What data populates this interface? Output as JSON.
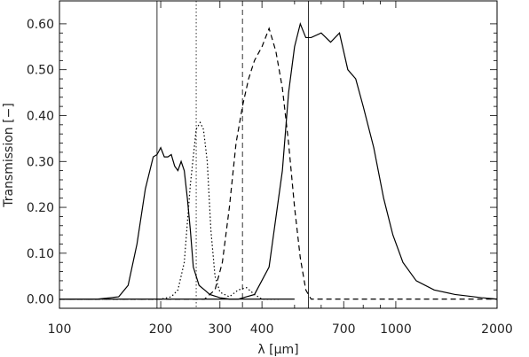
{
  "chart_data": {
    "type": "line",
    "xlabel": "λ [μm]",
    "ylabel": "Transmission [−]",
    "x_scale": "log",
    "xlim": [
      100,
      2000
    ],
    "ylim": [
      -0.02,
      0.65
    ],
    "x_ticks": [
      100,
      200,
      300,
      400,
      700,
      1000,
      2000
    ],
    "x_tick_labels": [
      "100",
      "200",
      "300",
      "400",
      "700",
      "1000",
      "2000"
    ],
    "y_ticks": [
      0.0,
      0.1,
      0.2,
      0.3,
      0.4,
      0.5,
      0.6
    ],
    "y_tick_labels": [
      "0.00",
      "0.10",
      "0.20",
      "0.30",
      "0.40",
      "0.50",
      "0.60"
    ],
    "grid": false,
    "legend": "none",
    "vertical_lines": [
      {
        "x": 195,
        "style": "solid"
      },
      {
        "x": 255,
        "style": "dotted"
      },
      {
        "x": 350,
        "style": "dashed"
      },
      {
        "x": 550,
        "style": "solid"
      }
    ],
    "series": [
      {
        "style": "solid",
        "x": [
          100,
          130,
          150,
          160,
          170,
          180,
          190,
          195,
          200,
          205,
          210,
          215,
          220,
          225,
          230,
          235,
          240,
          245,
          250,
          260,
          270,
          280,
          300,
          320,
          350,
          400,
          500
        ],
        "y": [
          0.0,
          0.0,
          0.005,
          0.03,
          0.12,
          0.24,
          0.31,
          0.315,
          0.33,
          0.31,
          0.31,
          0.315,
          0.29,
          0.28,
          0.3,
          0.28,
          0.22,
          0.15,
          0.07,
          0.03,
          0.02,
          0.01,
          0.003,
          0.0,
          0.0,
          0.0,
          0.0
        ]
      },
      {
        "style": "dotted",
        "x": [
          100,
          200,
          215,
          225,
          235,
          245,
          255,
          262,
          268,
          275,
          282,
          290,
          300,
          320,
          340,
          360,
          380,
          400,
          450
        ],
        "y": [
          0.0,
          0.0,
          0.005,
          0.02,
          0.08,
          0.25,
          0.37,
          0.385,
          0.37,
          0.3,
          0.15,
          0.05,
          0.015,
          0.005,
          0.02,
          0.025,
          0.01,
          0.0,
          0.0
        ]
      },
      {
        "style": "dashed",
        "x": [
          100,
          270,
          290,
          305,
          320,
          335,
          350,
          365,
          380,
          400,
          420,
          440,
          460,
          480,
          500,
          520,
          540,
          560,
          600,
          2000
        ],
        "y": [
          0.0,
          0.0,
          0.02,
          0.08,
          0.2,
          0.34,
          0.42,
          0.48,
          0.52,
          0.55,
          0.59,
          0.54,
          0.46,
          0.34,
          0.2,
          0.09,
          0.02,
          0.0,
          0.0,
          0.0
        ]
      },
      {
        "style": "solid",
        "x": [
          100,
          340,
          380,
          420,
          460,
          480,
          500,
          520,
          540,
          560,
          600,
          640,
          680,
          720,
          760,
          800,
          860,
          920,
          980,
          1050,
          1150,
          1300,
          1500,
          1800,
          2000
        ],
        "y": [
          0.0,
          0.0,
          0.01,
          0.07,
          0.28,
          0.45,
          0.55,
          0.6,
          0.57,
          0.57,
          0.58,
          0.56,
          0.58,
          0.5,
          0.48,
          0.42,
          0.33,
          0.22,
          0.14,
          0.08,
          0.04,
          0.02,
          0.01,
          0.003,
          0.0
        ]
      }
    ]
  }
}
